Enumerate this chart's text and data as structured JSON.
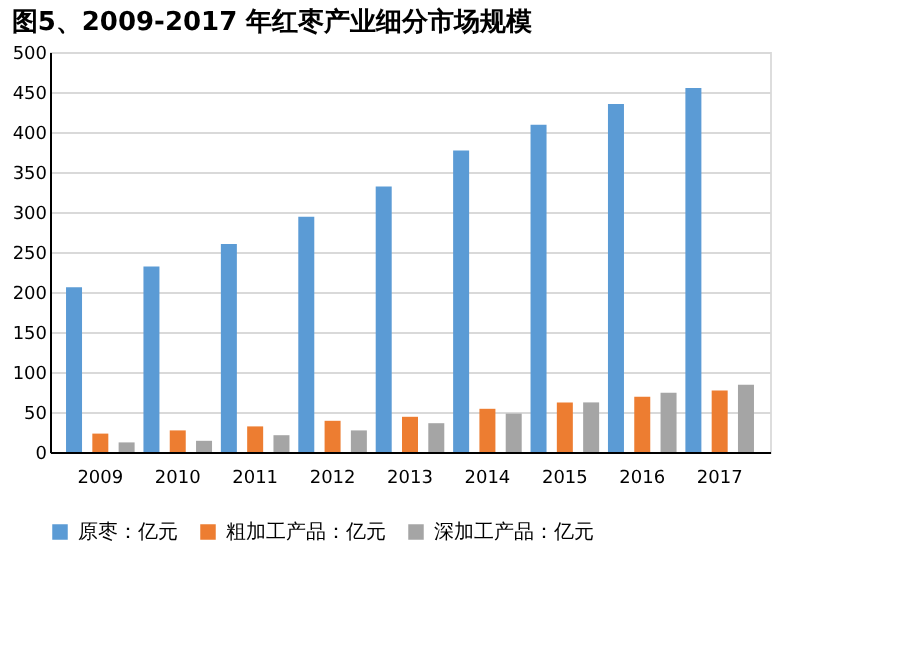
{
  "chart_data": {
    "type": "bar",
    "title": "图5、2009-2017 年红枣产业细分市场规模",
    "categories": [
      "2009",
      "2010",
      "2011",
      "2012",
      "2013",
      "2014",
      "2015",
      "2016",
      "2017"
    ],
    "series": [
      {
        "name": "原枣：亿元",
        "color": "#5b9bd5",
        "values": [
          206,
          232,
          260,
          294,
          332,
          377,
          409,
          435,
          455
        ]
      },
      {
        "name": "粗加工产品：亿元",
        "color": "#ed7d31",
        "values": [
          23,
          27,
          32,
          39,
          44,
          54,
          62,
          69,
          77
        ]
      },
      {
        "name": "深加工产品：亿元",
        "color": "#a5a5a5",
        "values": [
          12,
          14,
          21,
          27,
          36,
          48,
          62,
          74,
          84
        ]
      }
    ],
    "ylim": [
      0,
      500
    ],
    "yticks": [
      0,
      50,
      100,
      150,
      200,
      250,
      300,
      350,
      400,
      450,
      500
    ],
    "grid": "y",
    "legend": "bottom"
  }
}
